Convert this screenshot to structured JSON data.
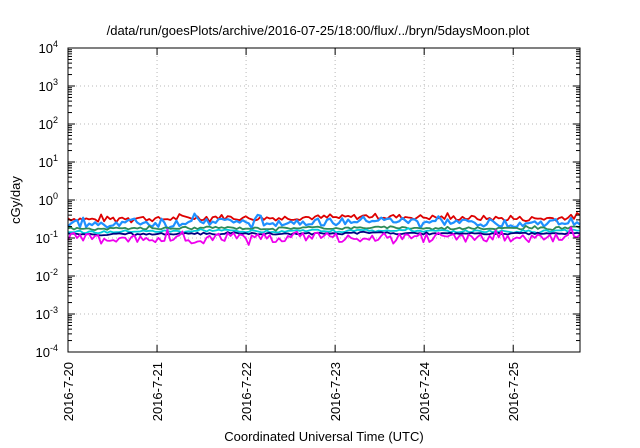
{
  "chart_data": {
    "type": "line",
    "title": "/data/run/goesPlots/archive/2016-07-25/18:00/flux/../bryn/5daysMoon.plot",
    "xlabel": "Coordinated Universal Time (UTC)",
    "ylabel": "cGy/day",
    "yscale": "log",
    "ylim": [
      0.0001,
      10000
    ],
    "y_ticks": [
      {
        "base": "10",
        "exp": "-4",
        "value": 0.0001
      },
      {
        "base": "10",
        "exp": "-3",
        "value": 0.001
      },
      {
        "base": "10",
        "exp": "-2",
        "value": 0.01
      },
      {
        "base": "10",
        "exp": "-1",
        "value": 0.1
      },
      {
        "base": "10",
        "exp": "0",
        "value": 1
      },
      {
        "base": "10",
        "exp": "1",
        "value": 10
      },
      {
        "base": "10",
        "exp": "2",
        "value": 100
      },
      {
        "base": "10",
        "exp": "3",
        "value": 1000
      },
      {
        "base": "10",
        "exp": "4",
        "value": 10000
      }
    ],
    "x_ticks": [
      "2016-7-20",
      "2016-7-21",
      "2016-7-22",
      "2016-7-23",
      "2016-7-24",
      "2016-7-25"
    ],
    "xlim": [
      "2016-07-20T00:00",
      "2016-07-25T18:00"
    ],
    "grid": true,
    "legend": "none",
    "series": [
      {
        "color": "#dd0000",
        "values_approx": [
          0.33,
          0.3,
          0.35,
          0.31,
          0.34,
          0.36,
          0.33,
          0.34,
          0.35,
          0.34,
          0.38,
          0.36,
          0.35,
          0.34,
          0.33,
          0.32,
          0.33,
          0.36
        ]
      },
      {
        "color": "#1e90ff",
        "values_approx": [
          0.25,
          0.22,
          0.27,
          0.24,
          0.26,
          0.29,
          0.25,
          0.26,
          0.27,
          0.26,
          0.3,
          0.28,
          0.27,
          0.26,
          0.25,
          0.24,
          0.25,
          0.28
        ]
      },
      {
        "color": "#2e8b57",
        "values_approx": [
          0.18,
          0.17,
          0.18,
          0.18,
          0.18,
          0.19,
          0.18,
          0.18,
          0.19,
          0.18,
          0.19,
          0.19,
          0.18,
          0.18,
          0.18,
          0.18,
          0.18,
          0.19
        ]
      },
      {
        "color": "#00ccdd",
        "values_approx": [
          0.15,
          0.14,
          0.15,
          0.15,
          0.15,
          0.16,
          0.15,
          0.15,
          0.16,
          0.15,
          0.16,
          0.16,
          0.15,
          0.15,
          0.15,
          0.15,
          0.15,
          0.16
        ]
      },
      {
        "color": "#000080",
        "values_approx": [
          0.13,
          0.12,
          0.13,
          0.13,
          0.13,
          0.13,
          0.13,
          0.13,
          0.13,
          0.13,
          0.14,
          0.13,
          0.13,
          0.13,
          0.13,
          0.13,
          0.13,
          0.13
        ]
      },
      {
        "color": "#ee00ee",
        "values_approx": [
          0.11,
          0.09,
          0.1,
          0.1,
          0.09,
          0.11,
          0.1,
          0.1,
          0.11,
          0.1,
          0.11,
          0.11,
          0.1,
          0.1,
          0.1,
          0.1,
          0.1,
          0.11
        ]
      }
    ]
  }
}
